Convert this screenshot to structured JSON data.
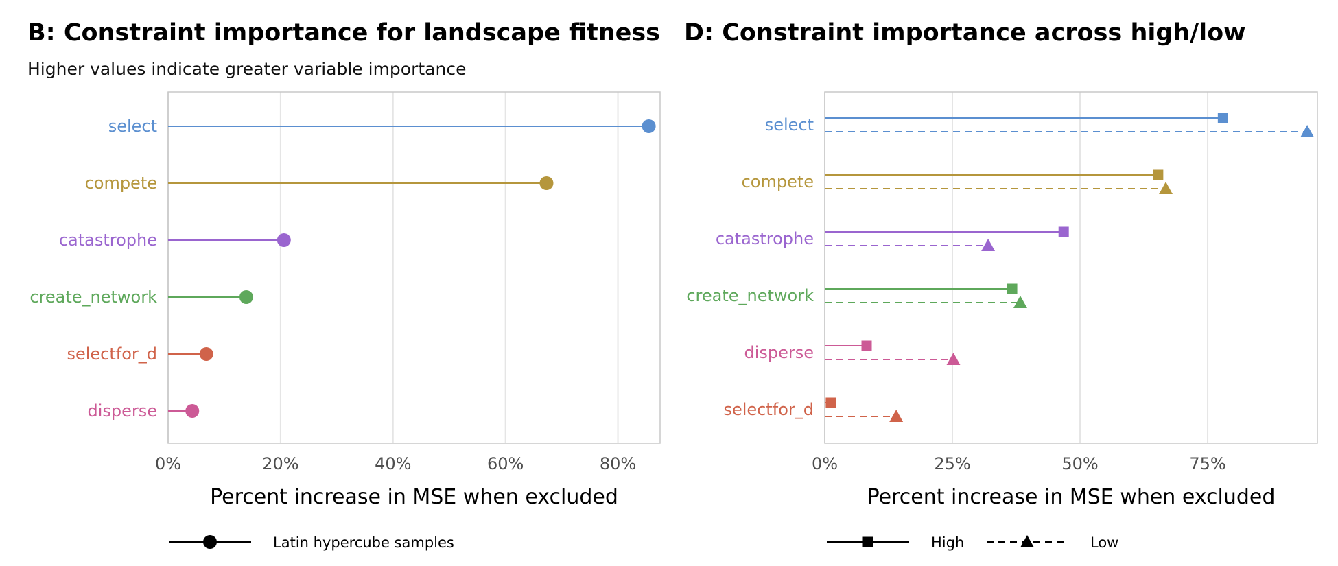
{
  "chart_data": [
    {
      "type": "lollipop",
      "title": "B: Constraint importance for landscape fitness",
      "subtitle": "Higher values indicate greater variable importance",
      "xlabel": "Percent increase in MSE when excluded",
      "xlim": [
        0,
        87.5
      ],
      "xticks": [
        0,
        20,
        40,
        60,
        80
      ],
      "xtick_labels": [
        "0%",
        "20%",
        "40%",
        "60%",
        "80%"
      ],
      "grid": true,
      "legend_position": "bottom",
      "series": [
        {
          "name": "Latin hypercube samples",
          "marker": "circle",
          "line": "solid"
        }
      ],
      "categories": [
        "select",
        "compete",
        "catastrophe",
        "create_network",
        "selectfor_d",
        "disperse"
      ],
      "colors": [
        "#5b8fd0",
        "#b5963c",
        "#9a65cf",
        "#5ea85b",
        "#d0634a",
        "#cc5a96"
      ],
      "values": [
        85.5,
        67.3,
        20.6,
        13.9,
        6.8,
        4.3
      ]
    },
    {
      "type": "lollipop",
      "title": "D: Constraint importance across high/low",
      "xlabel": "Percent increase in MSE when excluded",
      "xlim": [
        0,
        96.5
      ],
      "xticks": [
        0,
        25,
        50,
        75
      ],
      "xtick_labels": [
        "0%",
        "25%",
        "50%",
        "75%"
      ],
      "grid": true,
      "legend_position": "bottom",
      "categories": [
        "select",
        "compete",
        "catastrophe",
        "create_network",
        "disperse",
        "selectfor_d"
      ],
      "colors": [
        "#5b8fd0",
        "#b5963c",
        "#9a65cf",
        "#5ea85b",
        "#cc5a96",
        "#d0634a"
      ],
      "series": [
        {
          "name": "High",
          "marker": "square",
          "line": "solid",
          "values": [
            78.0,
            65.3,
            46.8,
            36.7,
            8.2,
            1.2
          ]
        },
        {
          "name": "Low",
          "marker": "triangle",
          "line": "dashed",
          "values": [
            94.5,
            66.8,
            32.0,
            38.3,
            25.2,
            14.0
          ]
        }
      ]
    }
  ]
}
